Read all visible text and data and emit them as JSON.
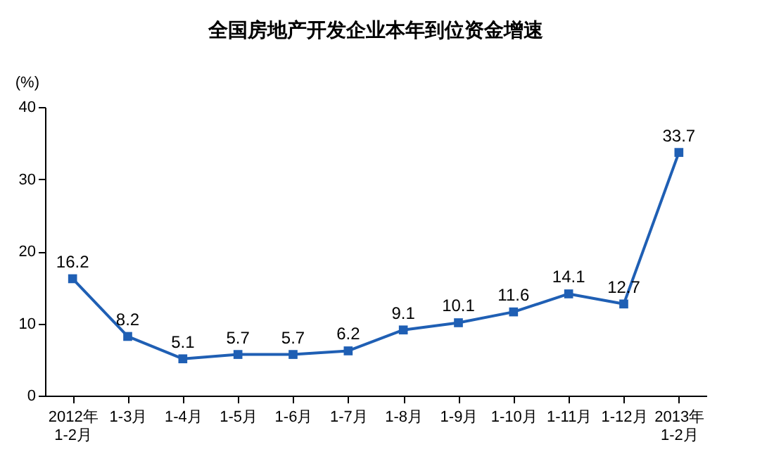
{
  "chart_data": {
    "type": "line",
    "title": "全国房地产开发企业本年到位资金增速",
    "ylabel": "(%)",
    "categories": [
      "2012年\n1-2月",
      "1-3月",
      "1-4月",
      "1-5月",
      "1-6月",
      "1-7月",
      "1-8月",
      "1-9月",
      "1-10月",
      "1-11月",
      "1-12月",
      "2013年\n1-2月"
    ],
    "series": [
      {
        "color": "#1f5fb4",
        "values": [
          16.2,
          8.2,
          5.1,
          5.7,
          5.7,
          6.2,
          9.1,
          10.1,
          11.6,
          14.1,
          12.7,
          33.7
        ]
      }
    ],
    "ylim": [
      0,
      40
    ],
    "yticks": [
      0,
      10,
      20,
      30,
      40
    ],
    "grid": false,
    "marker": "square",
    "line_style": "solid",
    "data_labels": true
  }
}
